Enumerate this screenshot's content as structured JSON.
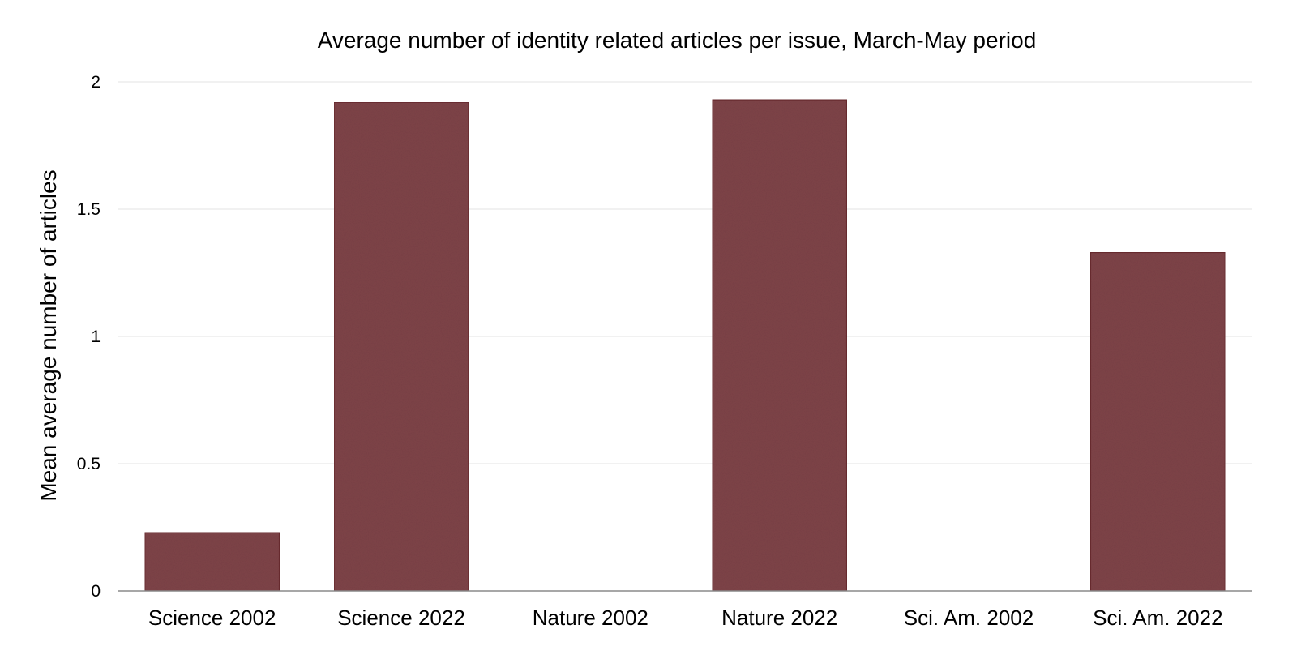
{
  "chart_data": {
    "type": "bar",
    "title": "Average number of identity related articles per issue, March-May period",
    "xlabel": "",
    "ylabel": "Mean average number of articles",
    "categories": [
      "Science 2002",
      "Science 2022",
      "Nature 2002",
      "Nature 2022",
      "Sci. Am. 2002",
      "Sci. Am. 2022"
    ],
    "values": [
      0.23,
      1.92,
      0,
      1.93,
      0,
      1.33
    ],
    "ylim": [
      0,
      2
    ],
    "yticks": [
      {
        "value": 0,
        "label": "0"
      },
      {
        "value": 0.5,
        "label": "0.5"
      },
      {
        "value": 1,
        "label": "1"
      },
      {
        "value": 1.5,
        "label": "1.5"
      },
      {
        "value": 2,
        "label": "2"
      }
    ],
    "grid": true,
    "legend": "none",
    "colors": {
      "bar": "#7f4549",
      "bar_edge": "#6a2d33",
      "grid": "#e3e3e3",
      "axis": "#8a8a8a"
    }
  }
}
